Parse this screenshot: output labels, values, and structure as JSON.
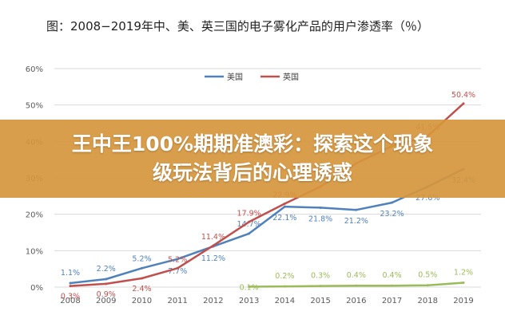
{
  "figure_title": "图：2008−2019年中、美、英三国的电子雾化产品的用户渗透率（％）",
  "banner": {
    "line1": "王中王100%期期准澳彩：探索这个现象",
    "line2": "级玩法背后的心理诱惑"
  },
  "chart_data": {
    "type": "line",
    "title": "",
    "xlabel": "",
    "ylabel": "",
    "ylim": [
      0,
      60
    ],
    "yticks": [
      "0%",
      "10%",
      "20%",
      "30%",
      "40%",
      "50%",
      "60%"
    ],
    "grid": true,
    "legend_position": "top",
    "categories": [
      "2008",
      "2009",
      "2010",
      "2011",
      "2012",
      "2013",
      "2014",
      "2015",
      "2016",
      "2017",
      "2018",
      "2019"
    ],
    "series": [
      {
        "name": "美国",
        "color": "#4f81bd",
        "values": [
          1.1,
          2.2,
          5.2,
          7.7,
          11.2,
          14.7,
          22.1,
          21.8,
          21.2,
          23.2,
          27.6,
          32.4
        ],
        "labels": [
          "1.1%",
          "2.2%",
          "5.2%",
          "7.7%",
          "11.2%",
          "14.7%",
          "22.1%",
          "21.8%",
          "21.2%",
          "23.2%",
          "27.6%",
          "32.4%"
        ]
      },
      {
        "name": "英国",
        "color": "#c0504d",
        "values": [
          0.3,
          0.9,
          2.4,
          5.2,
          11.4,
          17.9,
          22.9,
          27.6,
          34.0,
          38.7,
          41.5,
          50.4
        ],
        "labels": [
          "0.3%",
          "0.9%",
          "2.4%",
          "5.2%",
          "11.4%",
          "17.9%",
          "22.9%",
          "",
          "",
          "38.7%",
          "41.5%",
          "50.4%"
        ]
      },
      {
        "name": "",
        "color": "#9bbb59",
        "values": [
          null,
          null,
          null,
          null,
          null,
          0.1,
          0.2,
          0.3,
          0.4,
          0.4,
          0.5,
          1.2
        ],
        "labels": [
          "",
          "",
          "",
          "",
          "",
          "0.1%",
          "0.2%",
          "0.3%",
          "0.4%",
          "0.4%",
          "0.5%",
          "1.2%"
        ]
      }
    ]
  }
}
